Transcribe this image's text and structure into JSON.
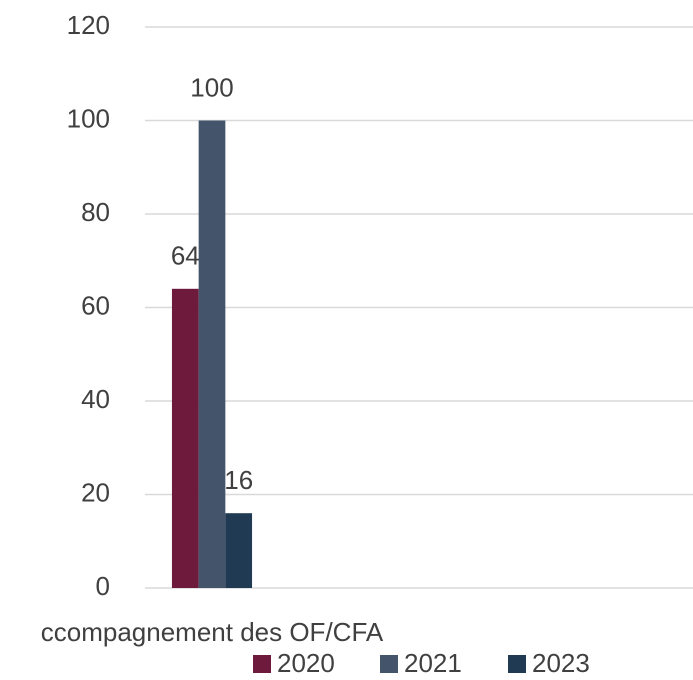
{
  "chart_data": {
    "type": "bar",
    "categories": [
      "ccompagnement des OF/CFA"
    ],
    "series": [
      {
        "name": "2020",
        "color": "#6d1a3c",
        "values": [
          64
        ]
      },
      {
        "name": "2021",
        "color": "#44546a",
        "values": [
          100
        ]
      },
      {
        "name": "2023",
        "color": "#1f3a52",
        "values": [
          16
        ]
      }
    ],
    "ylim": [
      0,
      120
    ],
    "yticks": [
      0,
      20,
      40,
      60,
      80,
      100,
      120
    ],
    "grid": true,
    "legend": "bottom",
    "data_labels": true
  }
}
